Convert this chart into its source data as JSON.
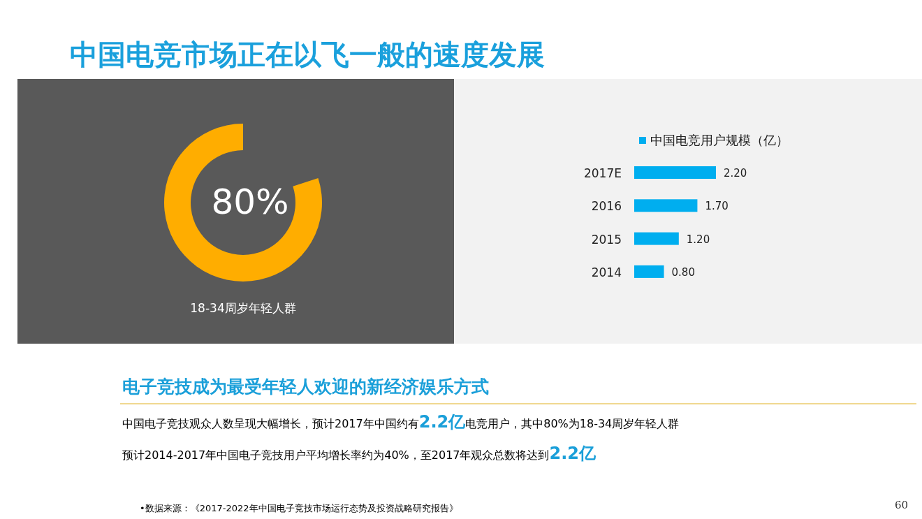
{
  "chart_data": [
    {
      "type": "other",
      "title": "中国电竞市场正在以飞一般的速度发展"
    },
    {
      "type": "pie",
      "categories": [
        "18-34周岁年轻人群"
      ],
      "values": [
        80
      ],
      "colors": [
        "#ffad00"
      ],
      "value_labels": [
        "80%"
      ]
    },
    {
      "type": "bar",
      "orientation": "horizontal",
      "categories": [
        "2017E",
        "2016",
        "2015",
        "2014"
      ],
      "series": [
        {
          "name": "中国电竞用户规模（亿）",
          "color": "#00aeef",
          "values": [
            2.2,
            1.7,
            1.2,
            0.8
          ],
          "value_labels": [
            "2.20",
            "1.70",
            "1.20",
            "0.80"
          ]
        }
      ],
      "legend": "top"
    },
    {
      "type": "other",
      "title": "电子竞技成为最受年轻人欢迎的新经济娱乐方式",
      "annotations": [
        "中国电子竞技观众人数呈现大幅增长，预计2017年中国约有**2.2亿**电竞用户，其中80%为18-34周岁年轻人群",
        "预计2014-2017年中国电子竞技用户平均增长率约为40%，至2017年观众总数将达到**2.2亿**",
        "•数据来源：《2017-2022年中国电子竞技市场运行态势及投资战略研究报告》",
        "60"
      ]
    }
  ]
}
